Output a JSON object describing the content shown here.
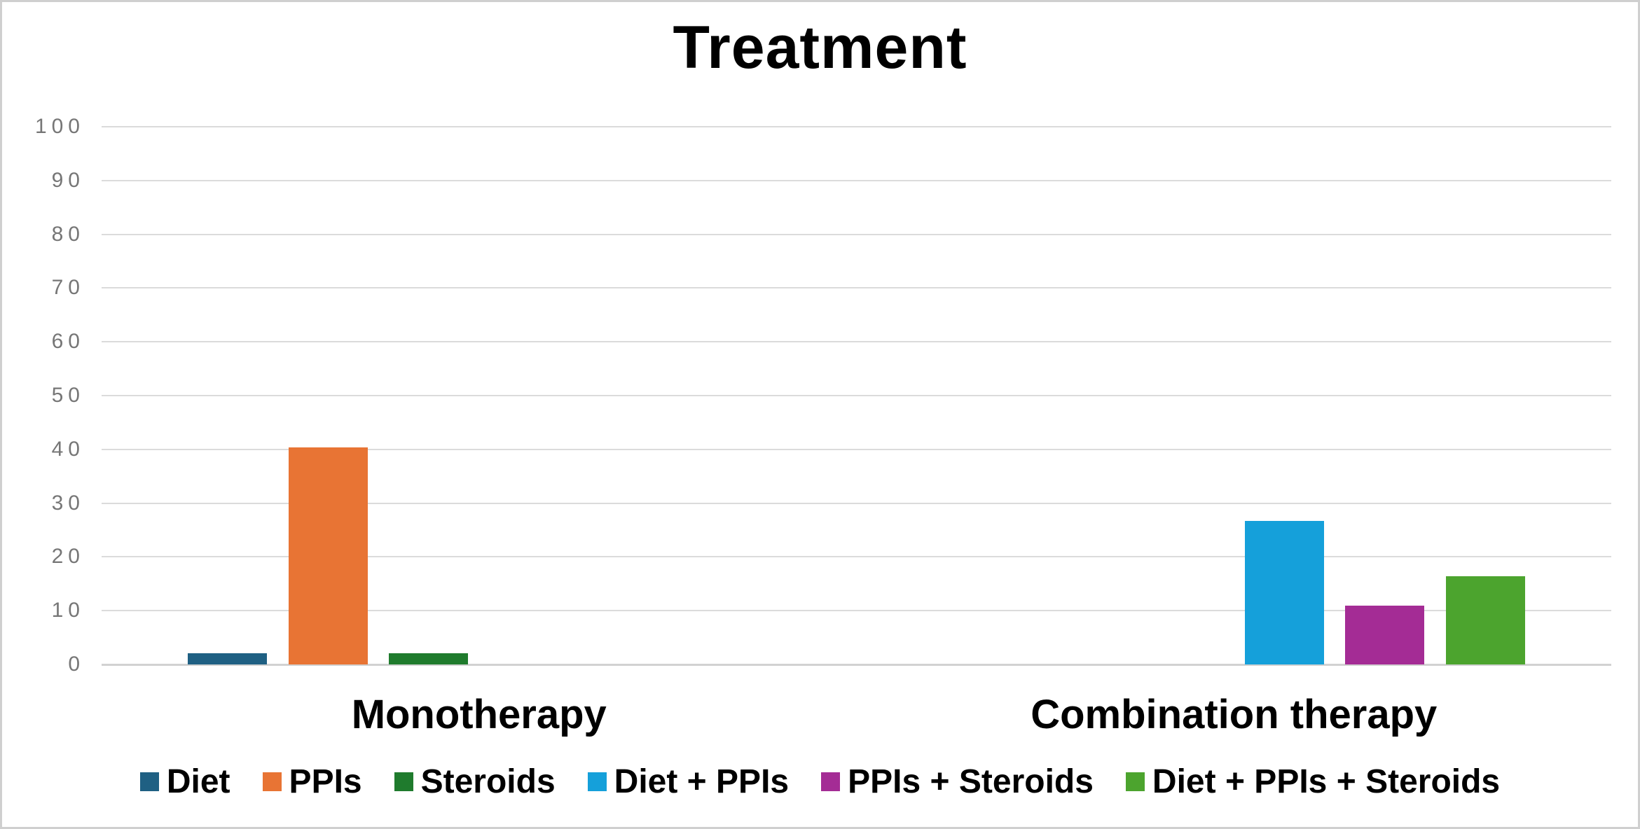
{
  "page": {
    "background": "#FFFFFF",
    "border_color": "#CFCFCF"
  },
  "chart_data": {
    "type": "bar",
    "title": "Treatment",
    "categories": [
      "Monotherapy",
      "Combination therapy"
    ],
    "series": [
      {
        "name": "Diet",
        "color": "#1F6083",
        "values": [
          2.1,
          0
        ]
      },
      {
        "name": "PPIs",
        "color": "#E87434",
        "values": [
          40.4,
          0
        ]
      },
      {
        "name": "Steroids",
        "color": "#1F7B2D",
        "values": [
          2.1,
          0
        ]
      },
      {
        "name": "Diet + PPIs",
        "color": "#15A0DA",
        "values": [
          0,
          26.7
        ]
      },
      {
        "name": "PPIs + Steroids",
        "color": "#A42C95",
        "values": [
          0,
          10.9
        ]
      },
      {
        "name": "Diet + PPIs + Steroids",
        "color": "#4CA42E",
        "values": [
          0,
          16.4
        ]
      }
    ],
    "xlabel": "",
    "ylabel": "",
    "ylim": [
      0,
      100
    ],
    "yticks": [
      0,
      10,
      20,
      30,
      40,
      50,
      60,
      70,
      80,
      90,
      100
    ],
    "grid": true,
    "gridline_color": "#DBDBDB",
    "axis_tick_color": "#767676",
    "legend_position": "bottom"
  }
}
